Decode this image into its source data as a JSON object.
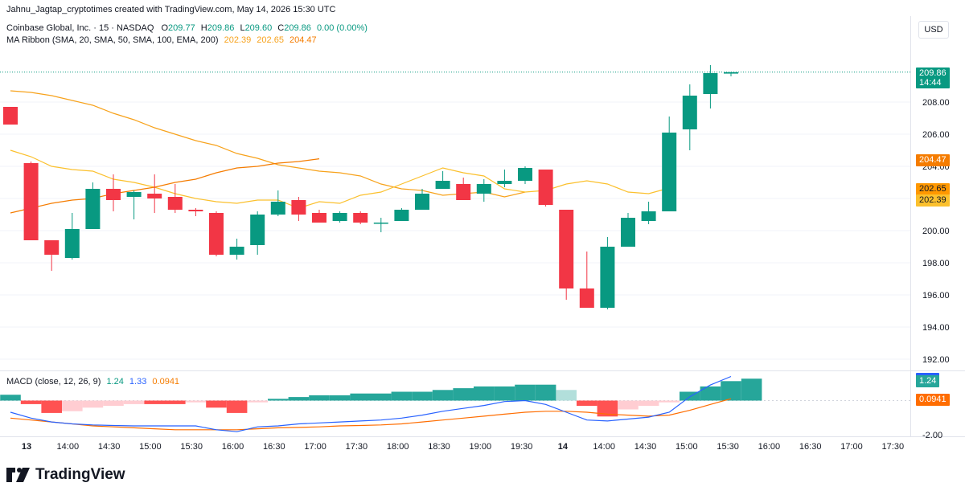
{
  "header": {
    "attribution": "Jahnu_Jagtap_cryptotimes created with TradingView.com, May 14, 2026 15:30 UTC",
    "symbol": "Coinbase Global, Inc. · 15 · NASDAQ",
    "o_label": "O",
    "o_value": "209.77",
    "h_label": "H",
    "h_value": "209.86",
    "l_label": "L",
    "l_value": "209.60",
    "c_label": "C",
    "c_value": "209.86",
    "change": "0.00 (0.00%)",
    "ribbon_label": "MA Ribbon (SMA, 20, SMA, 50, SMA, 100, EMA, 200)",
    "ribbon_v1": "202.39",
    "ribbon_v2": "202.65",
    "ribbon_v3": "204.47"
  },
  "currency_button": "USD",
  "macd": {
    "label": "MACD (close, 12, 26, 9)",
    "histogram_value": "1.24",
    "macd_value": "1.33",
    "signal_value": "0.0941",
    "axis_label": "-2.00",
    "price_tag_1": "1.24",
    "price_tag_2": "0.0941"
  },
  "price_labels": {
    "last": "209.86",
    "countdown": "14:44",
    "ma_top": "204.47",
    "ma_mid": "202.65",
    "ma_low": "202.39"
  },
  "brand": "TradingView",
  "colors": {
    "up": "#089981",
    "down": "#f23645",
    "ma20": "#fbc02d",
    "ma50": "#f7a21b",
    "ema200": "#f57c00",
    "macd_line": "#2962ff",
    "signal_line": "#ff6d00",
    "hist_up": "#26a69a",
    "hist_up_light": "#b2dfdb",
    "hist_down": "#ff5252",
    "hist_down_light": "#ffcdd2"
  },
  "chart_data": {
    "type": "candlestick",
    "interval": "15",
    "y_ticks": [
      "208.00",
      "206.00",
      "204.00",
      "202.00",
      "200.00",
      "198.00",
      "196.00",
      "194.00",
      "192.00"
    ],
    "x_ticks": [
      "13",
      "14:00",
      "14:30",
      "15:00",
      "15:30",
      "16:00",
      "16:30",
      "17:00",
      "17:30",
      "18:00",
      "18:30",
      "19:00",
      "19:30",
      "14",
      "14:00",
      "14:30",
      "15:00",
      "15:30",
      "16:00",
      "16:30",
      "17:00",
      "17:30"
    ],
    "ylim": [
      191.2,
      211.2
    ],
    "candles": [
      {
        "o": 207.7,
        "h": 207.7,
        "l": 206.6,
        "c": 206.6
      },
      {
        "o": 204.2,
        "h": 204.3,
        "l": 199.4,
        "c": 199.4
      },
      {
        "o": 199.4,
        "h": 199.4,
        "l": 197.5,
        "c": 198.5
      },
      {
        "o": 198.3,
        "h": 201.1,
        "l": 198.2,
        "c": 200.1
      },
      {
        "o": 200.1,
        "h": 203.0,
        "l": 200.1,
        "c": 202.6
      },
      {
        "o": 202.6,
        "h": 203.5,
        "l": 201.2,
        "c": 201.9
      },
      {
        "o": 202.1,
        "h": 202.5,
        "l": 200.7,
        "c": 202.4
      },
      {
        "o": 202.3,
        "h": 203.5,
        "l": 201.1,
        "c": 202.0
      },
      {
        "o": 202.1,
        "h": 202.9,
        "l": 201.1,
        "c": 201.3
      },
      {
        "o": 201.3,
        "h": 201.4,
        "l": 200.9,
        "c": 201.2
      },
      {
        "o": 201.1,
        "h": 201.2,
        "l": 198.4,
        "c": 198.5
      },
      {
        "o": 198.5,
        "h": 199.5,
        "l": 198.2,
        "c": 199.0
      },
      {
        "o": 199.1,
        "h": 201.2,
        "l": 198.5,
        "c": 201.0
      },
      {
        "o": 201.0,
        "h": 202.5,
        "l": 200.9,
        "c": 201.8
      },
      {
        "o": 201.9,
        "h": 202.1,
        "l": 200.6,
        "c": 201.0
      },
      {
        "o": 201.1,
        "h": 201.3,
        "l": 200.5,
        "c": 200.5
      },
      {
        "o": 200.6,
        "h": 201.2,
        "l": 200.5,
        "c": 201.1
      },
      {
        "o": 201.1,
        "h": 201.2,
        "l": 200.4,
        "c": 200.5
      },
      {
        "o": 200.5,
        "h": 200.8,
        "l": 199.9,
        "c": 200.5
      },
      {
        "o": 200.6,
        "h": 201.4,
        "l": 200.6,
        "c": 201.3
      },
      {
        "o": 201.3,
        "h": 202.6,
        "l": 201.3,
        "c": 202.3
      },
      {
        "o": 202.6,
        "h": 203.7,
        "l": 202.6,
        "c": 203.1
      },
      {
        "o": 202.9,
        "h": 203.3,
        "l": 201.9,
        "c": 201.9
      },
      {
        "o": 202.3,
        "h": 203.2,
        "l": 201.8,
        "c": 202.9
      },
      {
        "o": 202.9,
        "h": 203.8,
        "l": 202.7,
        "c": 203.1
      },
      {
        "o": 203.1,
        "h": 204.0,
        "l": 202.9,
        "c": 203.9
      },
      {
        "o": 203.8,
        "h": 203.8,
        "l": 201.5,
        "c": 201.6
      },
      {
        "o": 201.3,
        "h": 201.3,
        "l": 195.7,
        "c": 196.4
      },
      {
        "o": 196.4,
        "h": 198.7,
        "l": 195.2,
        "c": 195.2
      },
      {
        "o": 195.2,
        "h": 199.6,
        "l": 195.1,
        "c": 199.0
      },
      {
        "o": 199.0,
        "h": 201.1,
        "l": 199.0,
        "c": 200.8
      },
      {
        "o": 200.6,
        "h": 201.8,
        "l": 200.4,
        "c": 201.2
      },
      {
        "o": 201.2,
        "h": 207.1,
        "l": 201.2,
        "c": 206.1
      },
      {
        "o": 206.3,
        "h": 209.1,
        "l": 205.0,
        "c": 208.4
      },
      {
        "o": 208.5,
        "h": 210.3,
        "l": 207.6,
        "c": 209.8
      },
      {
        "o": 209.77,
        "h": 209.86,
        "l": 209.6,
        "c": 209.86
      }
    ],
    "ma_ribbon": {
      "sma20": [
        205.0,
        204.6,
        204.0,
        203.8,
        203.7,
        203.2,
        203.0,
        202.7,
        202.3,
        202.0,
        201.8,
        201.7,
        201.9,
        201.9,
        201.4,
        201.8,
        201.7,
        202.2,
        202.4,
        202.9,
        203.4,
        203.9,
        203.6,
        203.4,
        202.6,
        202.4,
        202.5,
        202.9,
        203.1,
        202.9,
        202.4,
        202.3,
        202.65
      ],
      "sma50": [
        208.7,
        208.6,
        208.4,
        208.1,
        207.8,
        207.3,
        206.9,
        206.4,
        206.0,
        205.6,
        205.3,
        204.8,
        204.5,
        204.1,
        203.9,
        203.7,
        203.6,
        203.4,
        202.9,
        202.6,
        202.5,
        202.2,
        202.3,
        202.4,
        202.1,
        202.4
      ],
      "ema200": [
        201.1,
        201.4,
        201.7,
        201.9,
        202.0,
        202.3,
        202.5,
        202.7,
        203.0,
        203.2,
        203.6,
        203.9,
        204.0,
        204.2,
        204.3,
        204.47
      ]
    },
    "macd": {
      "histogram": [
        0.33,
        -0.2,
        -0.7,
        -0.6,
        -0.4,
        -0.3,
        -0.2,
        -0.2,
        -0.2,
        -0.1,
        -0.4,
        -0.7,
        -0.1,
        0.1,
        0.2,
        0.3,
        0.3,
        0.4,
        0.4,
        0.5,
        0.5,
        0.6,
        0.7,
        0.8,
        0.8,
        0.9,
        0.9,
        0.6,
        -0.3,
        -0.9,
        -0.5,
        -0.3,
        -0.1,
        0.5,
        0.8,
        1.1,
        1.24
      ]
    }
  }
}
